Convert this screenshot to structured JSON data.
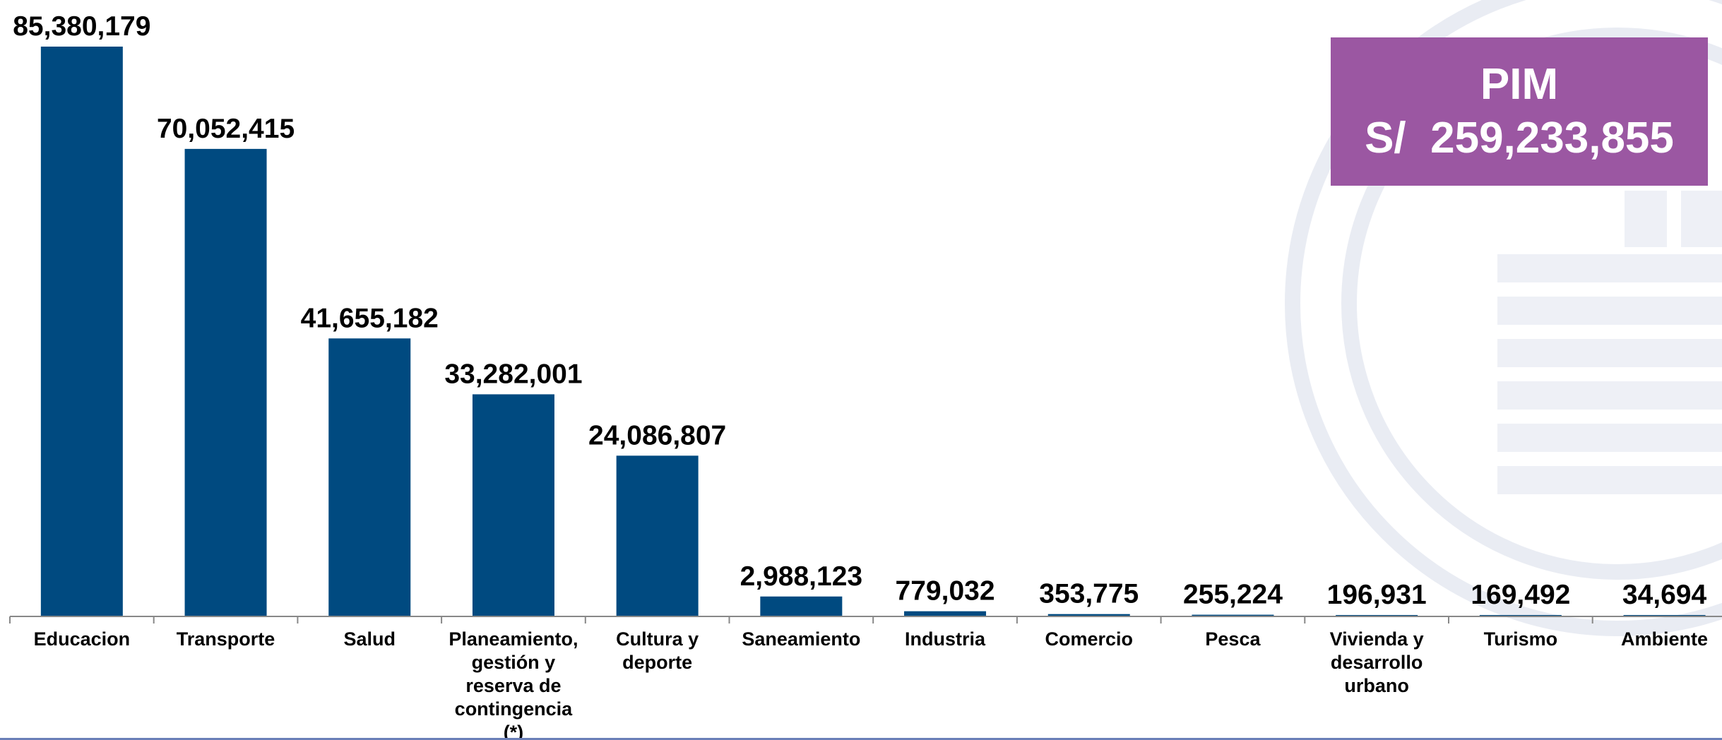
{
  "pim_box": {
    "title": "PIM",
    "amount": "S/  259,233,855",
    "background": "#9b57a2"
  },
  "chart_data": {
    "type": "bar",
    "categories": [
      "Educacion",
      "Transporte",
      "Salud",
      "Planeamiento, gestión y reserva de contingencia (*)",
      "Cultura y deporte",
      "Saneamiento",
      "Industria",
      "Comercio",
      "Pesca",
      "Vivienda y desarrollo urbano",
      "Turismo",
      "Ambiente"
    ],
    "category_lines": [
      [
        "Educacion"
      ],
      [
        "Transporte"
      ],
      [
        "Salud"
      ],
      [
        "Planeamiento,",
        "gestión y",
        "reserva de",
        "contingencia",
        "(*)"
      ],
      [
        "Cultura y",
        "deporte"
      ],
      [
        "Saneamiento"
      ],
      [
        "Industria"
      ],
      [
        "Comercio"
      ],
      [
        "Pesca"
      ],
      [
        "Vivienda y",
        "desarrollo",
        "urbano"
      ],
      [
        "Turismo"
      ],
      [
        "Ambiente"
      ]
    ],
    "values": [
      85380179,
      70052415,
      41655182,
      33282001,
      24086807,
      2988123,
      779032,
      353775,
      255224,
      196931,
      169492,
      34694
    ],
    "value_labels": [
      "85,380,179",
      "70,052,415",
      "41,655,182",
      "33,282,001",
      "24,086,807",
      "2,988,123",
      "779,032",
      "353,775",
      "255,224",
      "196,931",
      "169,492",
      "34,694"
    ],
    "ylim": [
      0,
      85380179
    ],
    "bar_color": "#004a80",
    "grid": false,
    "legend": "none"
  }
}
